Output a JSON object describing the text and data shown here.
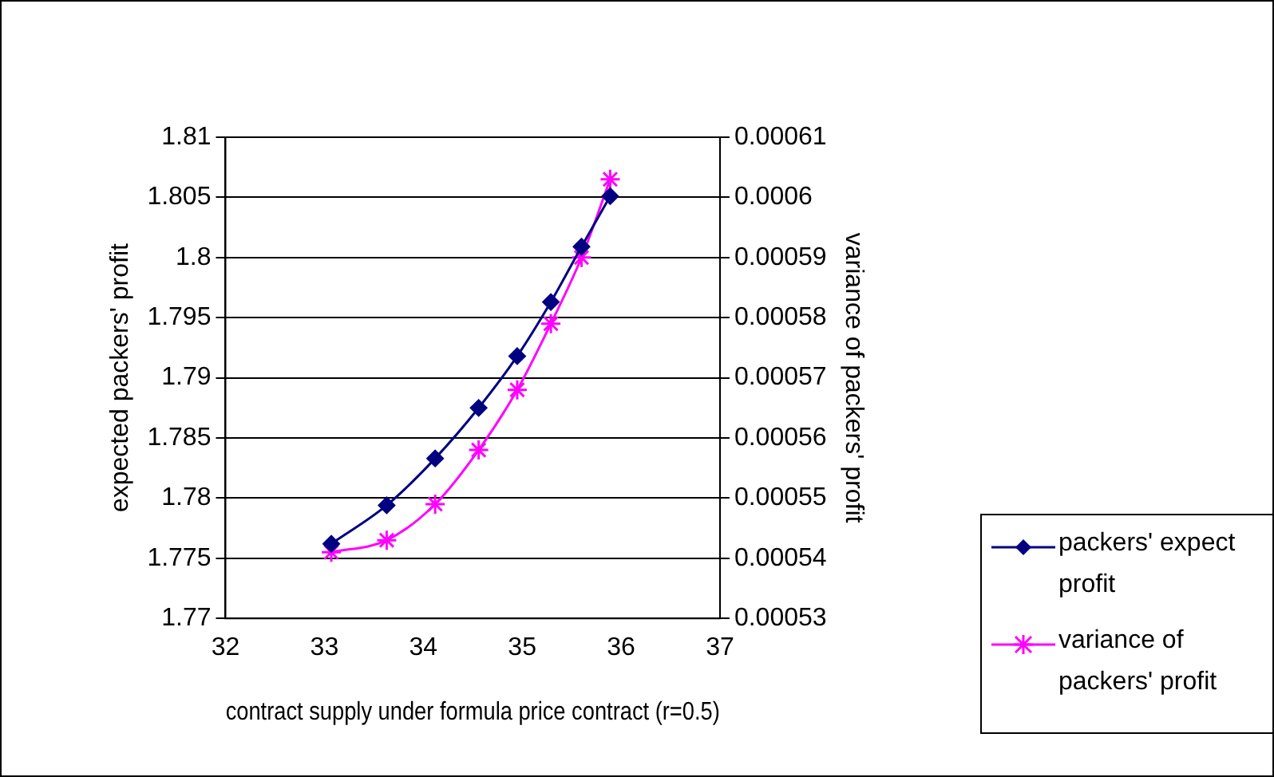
{
  "chart_data": {
    "type": "line",
    "xlabel": "contract supply under formula price contract (r=0.5)",
    "ylabel": "expected packers' profit",
    "y2label": "variance of packers' profit",
    "xlim": [
      32,
      37
    ],
    "xticks": [
      32,
      33,
      34,
      35,
      36,
      37
    ],
    "ylim": [
      1.77,
      1.81
    ],
    "yticks": [
      1.77,
      1.775,
      1.78,
      1.785,
      1.79,
      1.795,
      1.8,
      1.805,
      1.81
    ],
    "y2lim": [
      0.00053,
      0.00061
    ],
    "y2ticks": [
      0.00053,
      0.00054,
      0.00055,
      0.00056,
      0.00057,
      0.00058,
      0.00059,
      0.0006,
      0.00061
    ],
    "grid": "y",
    "legend": "bottom right",
    "line_style": "solid",
    "series": [
      {
        "name": "packers' expect profit",
        "color": "#000080",
        "marker": "diamond",
        "x": [
          33.07,
          33.63,
          34.12,
          34.56,
          34.95,
          35.29,
          35.6,
          35.89
        ],
        "values": [
          1.7762,
          1.7794,
          1.7833,
          1.7875,
          1.7918,
          1.7963,
          1.8009,
          1.8051
        ]
      },
      {
        "name": "variance of packers' profit",
        "color": "#ff00ff",
        "marker": "cross",
        "axis": "y2",
        "x": [
          33.07,
          33.63,
          34.12,
          34.56,
          34.95,
          35.29,
          35.6,
          35.89
        ],
        "values": [
          0.000541,
          0.000543,
          0.000549,
          0.000558,
          0.000568,
          0.000579,
          0.00059,
          0.000603
        ]
      }
    ]
  }
}
